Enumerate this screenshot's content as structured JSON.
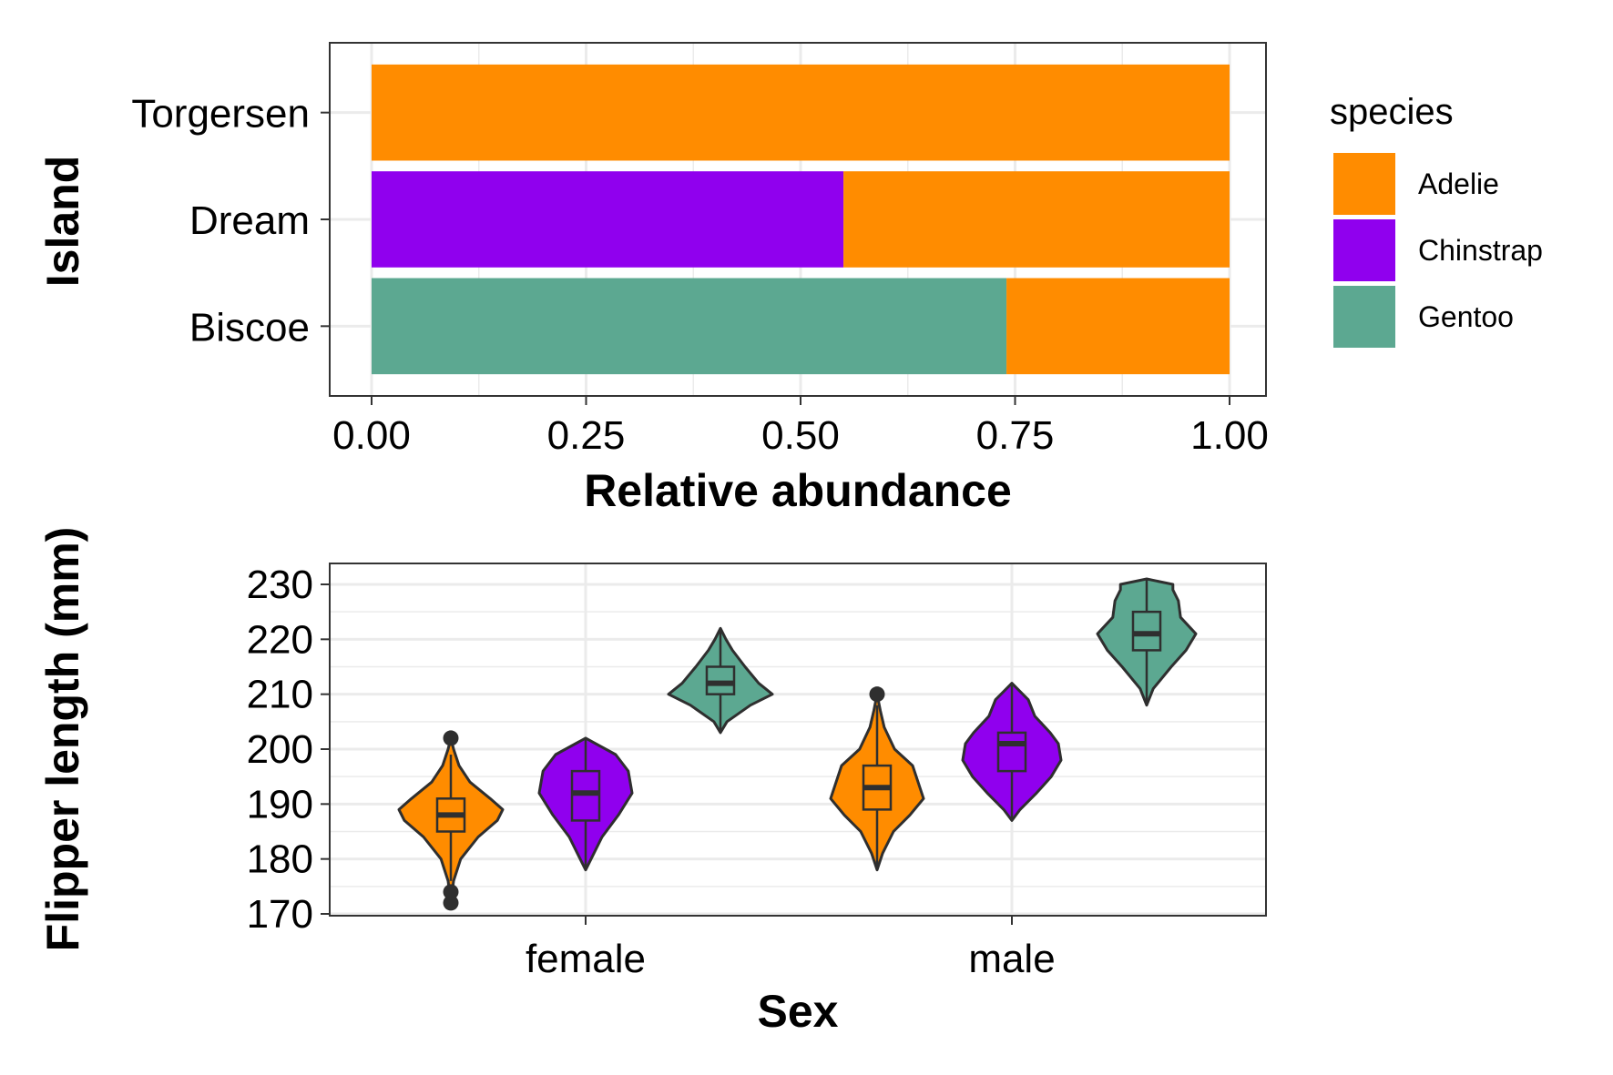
{
  "colors": {
    "Adelie": "#FF8C00",
    "Chinstrap": "#9000EE",
    "Gentoo": "#5CA891",
    "panel_border": "#333333",
    "grid": "#EBEBEB",
    "outline": "#2F2F2F"
  },
  "legend": {
    "title": "species",
    "entries": [
      "Adelie",
      "Chinstrap",
      "Gentoo"
    ],
    "placement": "right"
  },
  "chart_data": [
    {
      "type": "bar",
      "orientation": "horizontal",
      "stacked": true,
      "xlabel": "Relative abundance",
      "ylabel": "Island",
      "xlim": [
        0,
        1
      ],
      "xticks": [
        "0.00",
        "0.25",
        "0.50",
        "0.75",
        "1.00"
      ],
      "grid": true,
      "categories": [
        "Biscoe",
        "Dream",
        "Torgersen"
      ],
      "series": [
        {
          "name": "Gentoo",
          "values": [
            0.74,
            0.0,
            0.0
          ]
        },
        {
          "name": "Chinstrap",
          "values": [
            0.0,
            0.55,
            0.0
          ]
        },
        {
          "name": "Adelie",
          "values": [
            0.26,
            0.45,
            1.0
          ]
        }
      ]
    },
    {
      "type": "violin",
      "xlabel": "Sex",
      "ylabel": "Flipper length (mm)",
      "categories": [
        "female",
        "male"
      ],
      "ylim": [
        170,
        230
      ],
      "yticks": [
        "170",
        "180",
        "190",
        "200",
        "210",
        "220",
        "230"
      ],
      "grid": true,
      "groups": [
        {
          "sex": "female",
          "species": "Adelie",
          "min": 176,
          "q1": 185,
          "median": 188,
          "q3": 191,
          "max": 199,
          "outliers": [
            172,
            174,
            202
          ],
          "density": [
            [
              172,
              0
            ],
            [
              176,
              0.05
            ],
            [
              180,
              0.18
            ],
            [
              184,
              0.5
            ],
            [
              187,
              0.85
            ],
            [
              189,
              0.95
            ],
            [
              191,
              0.72
            ],
            [
              194,
              0.35
            ],
            [
              197,
              0.15
            ],
            [
              200,
              0.05
            ],
            [
              202,
              0
            ]
          ]
        },
        {
          "sex": "female",
          "species": "Chinstrap",
          "min": 178,
          "q1": 187,
          "median": 192,
          "q3": 196,
          "max": 202,
          "outliers": [],
          "density": [
            [
              178,
              0
            ],
            [
              180,
              0.1
            ],
            [
              184,
              0.3
            ],
            [
              188,
              0.6
            ],
            [
              192,
              0.85
            ],
            [
              196,
              0.78
            ],
            [
              199,
              0.55
            ],
            [
              202,
              0
            ]
          ]
        },
        {
          "sex": "female",
          "species": "Gentoo",
          "min": 203,
          "q1": 210,
          "median": 212,
          "q3": 215,
          "max": 222,
          "outliers": [],
          "density": [
            [
              203,
              0
            ],
            [
              205,
              0.12
            ],
            [
              208,
              0.55
            ],
            [
              210,
              0.95
            ],
            [
              212,
              0.7
            ],
            [
              215,
              0.45
            ],
            [
              218,
              0.22
            ],
            [
              220,
              0.1
            ],
            [
              222,
              0
            ]
          ]
        },
        {
          "sex": "male",
          "species": "Adelie",
          "min": 178,
          "q1": 189,
          "median": 193,
          "q3": 197,
          "max": 208,
          "outliers": [
            210
          ],
          "density": [
            [
              178,
              0
            ],
            [
              181,
              0.1
            ],
            [
              185,
              0.3
            ],
            [
              188,
              0.6
            ],
            [
              191,
              0.85
            ],
            [
              194,
              0.75
            ],
            [
              197,
              0.65
            ],
            [
              200,
              0.32
            ],
            [
              204,
              0.13
            ],
            [
              207,
              0.06
            ],
            [
              210,
              0
            ]
          ]
        },
        {
          "sex": "male",
          "species": "Chinstrap",
          "min": 187,
          "q1": 196,
          "median": 201,
          "q3": 203,
          "max": 212,
          "outliers": [],
          "density": [
            [
              187,
              0
            ],
            [
              189,
              0.15
            ],
            [
              192,
              0.45
            ],
            [
              195,
              0.72
            ],
            [
              198,
              0.9
            ],
            [
              201,
              0.85
            ],
            [
              203,
              0.7
            ],
            [
              206,
              0.42
            ],
            [
              209,
              0.3
            ],
            [
              212,
              0
            ]
          ]
        },
        {
          "sex": "male",
          "species": "Gentoo",
          "min": 208,
          "q1": 218,
          "median": 221,
          "q3": 225,
          "max": 231,
          "outliers": [],
          "density": [
            [
              208,
              0
            ],
            [
              211,
              0.12
            ],
            [
              215,
              0.45
            ],
            [
              218,
              0.72
            ],
            [
              221,
              0.9
            ],
            [
              224,
              0.62
            ],
            [
              227,
              0.58
            ],
            [
              229,
              0.48
            ],
            [
              230,
              0.48
            ],
            [
              231,
              0
            ]
          ]
        }
      ]
    }
  ]
}
